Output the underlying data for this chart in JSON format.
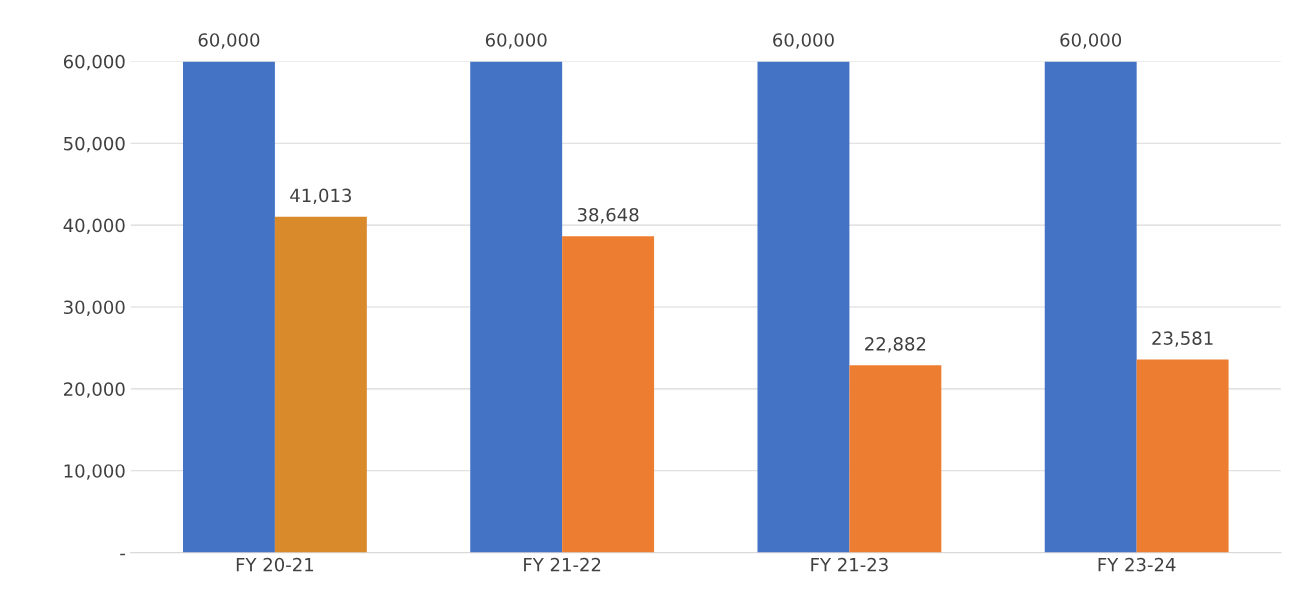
{
  "chart_data": {
    "type": "bar",
    "categories": [
      "FY 20-21",
      "FY 21-22",
      "FY 21-23",
      "FY 23-24"
    ],
    "series": [
      {
        "color": "#4472c4",
        "values": [
          60000,
          60000,
          60000,
          60000
        ],
        "value_labels": [
          "60,000",
          "60,000",
          "60,000",
          "60,000"
        ]
      },
      {
        "color": "#ed7d31",
        "colors": [
          "#d98a2b",
          "#ed7d31",
          "#ed7d31",
          "#ed7d31"
        ],
        "values": [
          41013,
          38648,
          22882,
          23581
        ],
        "value_labels": [
          "41,013",
          "38,648",
          "22,882",
          "23,581"
        ]
      }
    ],
    "ylim": [
      0,
      60000
    ],
    "yticks": [
      {
        "value": 0,
        "label": "-"
      },
      {
        "value": 10000,
        "label": "10,000"
      },
      {
        "value": 20000,
        "label": "20,000"
      },
      {
        "value": 30000,
        "label": "30,000"
      },
      {
        "value": 40000,
        "label": "40,000"
      },
      {
        "value": 50000,
        "label": "50,000"
      },
      {
        "value": 60000,
        "label": "60,000"
      }
    ],
    "grid": "y",
    "legend": false
  }
}
